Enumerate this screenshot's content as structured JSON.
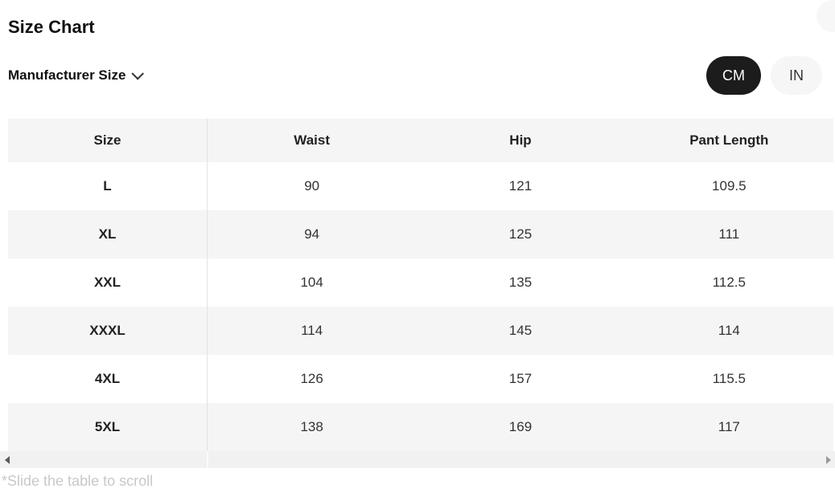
{
  "header": {
    "title": "Size Chart",
    "size_selector_label": "Manufacturer Size",
    "unit_toggle": [
      {
        "label": "CM",
        "selected": true
      },
      {
        "label": "IN",
        "selected": false
      }
    ]
  },
  "table": {
    "columns": [
      "Size",
      "Waist",
      "Hip",
      "Pant Length"
    ],
    "rows": [
      {
        "size": "L",
        "waist": "90",
        "hip": "121",
        "pant_length": "109.5"
      },
      {
        "size": "XL",
        "waist": "94",
        "hip": "125",
        "pant_length": "111"
      },
      {
        "size": "XXL",
        "waist": "104",
        "hip": "135",
        "pant_length": "112.5"
      },
      {
        "size": "XXXL",
        "waist": "114",
        "hip": "145",
        "pant_length": "114"
      },
      {
        "size": "4XL",
        "waist": "126",
        "hip": "157",
        "pant_length": "115.5"
      },
      {
        "size": "5XL",
        "waist": "138",
        "hip": "169",
        "pant_length": "117"
      }
    ]
  },
  "footnote": "*Slide the table to scroll",
  "icons": {
    "chevron_down": "chevron-down",
    "scroll_left": "left-triangle",
    "scroll_right": "right-triangle"
  },
  "colors": {
    "pill_selected_bg": "#1c1c1c",
    "pill_selected_text": "#ffffff",
    "pill_unselected_bg": "#f6f6f6",
    "row_alt_bg": "#f5f5f5",
    "column_divider": "#e2e2e2",
    "scrollbar_track": "#f1f1f1",
    "footnote_text": "#c6c9cb"
  }
}
